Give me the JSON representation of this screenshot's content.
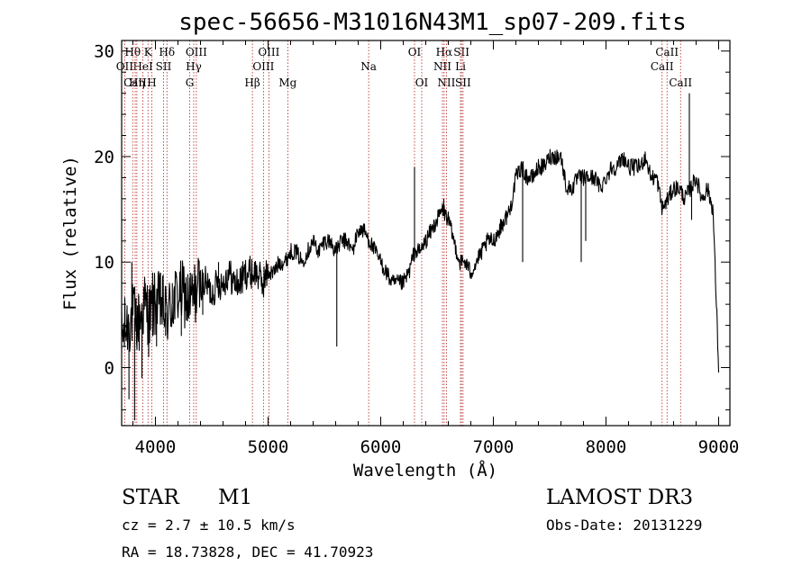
{
  "chart_data": {
    "type": "line",
    "title": "spec-56656-M31016N43M1_sp07-209.fits",
    "xlabel": "Wavelength (Å)",
    "ylabel": "Flux (relative)",
    "xlim": [
      3700,
      9100
    ],
    "ylim": [
      -5.5,
      31
    ],
    "x_ticks": [
      4000,
      5000,
      6000,
      7000,
      8000,
      9000
    ],
    "y_ticks": [
      0,
      10,
      20,
      30
    ],
    "x_tick_labels": [
      "4000",
      "5000",
      "6000",
      "7000",
      "8000",
      "9000"
    ],
    "y_tick_labels": [
      "0",
      "10",
      "20",
      "30"
    ],
    "series": [
      {
        "name": "flux",
        "x": [
          3700,
          3750,
          3800,
          3850,
          3900,
          3950,
          4000,
          4050,
          4100,
          4150,
          4200,
          4250,
          4300,
          4350,
          4400,
          4450,
          4500,
          4550,
          4600,
          4650,
          4700,
          4750,
          4800,
          4850,
          4900,
          4950,
          5000,
          5050,
          5100,
          5150,
          5200,
          5250,
          5300,
          5350,
          5400,
          5450,
          5500,
          5550,
          5600,
          5650,
          5700,
          5750,
          5800,
          5850,
          5900,
          5950,
          6000,
          6050,
          6100,
          6150,
          6200,
          6250,
          6300,
          6350,
          6400,
          6450,
          6500,
          6550,
          6600,
          6650,
          6700,
          6750,
          6800,
          6850,
          6900,
          6950,
          7000,
          7050,
          7100,
          7150,
          7200,
          7250,
          7300,
          7350,
          7400,
          7450,
          7500,
          7550,
          7600,
          7650,
          7700,
          7750,
          7800,
          7850,
          7900,
          7950,
          8000,
          8050,
          8100,
          8150,
          8200,
          8250,
          8300,
          8350,
          8400,
          8450,
          8500,
          8550,
          8600,
          8650,
          8700,
          8750,
          8800,
          8850,
          8900,
          8950,
          9000
        ],
        "y": [
          3,
          4,
          5,
          4,
          6,
          5,
          6,
          6,
          5,
          6,
          7,
          7,
          6,
          7,
          8,
          8,
          7,
          8,
          8,
          9,
          8,
          8,
          9,
          9,
          9,
          8,
          9,
          9,
          10,
          10,
          11,
          11,
          10,
          11,
          12,
          11,
          12,
          12,
          11,
          12,
          12,
          11,
          13,
          13,
          12,
          11,
          10,
          9,
          8,
          8,
          8,
          9,
          11,
          11,
          12,
          13,
          14,
          15,
          14,
          12,
          10,
          10,
          9,
          10,
          11,
          12,
          12,
          13,
          14,
          15,
          18,
          19,
          18,
          18,
          19,
          19,
          20,
          20,
          20,
          17,
          17,
          18,
          18,
          18,
          18,
          17,
          18,
          19,
          19,
          20,
          19,
          19,
          19,
          20,
          18,
          18,
          15,
          16,
          17,
          17,
          16,
          17,
          18,
          16,
          17,
          15,
          0
        ],
        "spikes": [
          {
            "x": 3740,
            "y": 4
          },
          {
            "x": 3765,
            "y": -3
          },
          {
            "x": 3790,
            "y": 10
          },
          {
            "x": 3815,
            "y": -5
          },
          {
            "x": 3850,
            "y": 7
          },
          {
            "x": 3880,
            "y": -1
          },
          {
            "x": 3910,
            "y": 8
          },
          {
            "x": 3940,
            "y": 1
          },
          {
            "x": 3975,
            "y": 9
          },
          {
            "x": 4010,
            "y": 2
          },
          {
            "x": 4045,
            "y": 9
          },
          {
            "x": 4090,
            "y": 3
          },
          {
            "x": 4150,
            "y": 8
          },
          {
            "x": 4230,
            "y": 3
          },
          {
            "x": 4310,
            "y": 9
          },
          {
            "x": 4420,
            "y": 5
          },
          {
            "x": 4560,
            "y": 10
          },
          {
            "x": 5610,
            "y": 2
          },
          {
            "x": 6300,
            "y": 19
          },
          {
            "x": 6560,
            "y": 16
          },
          {
            "x": 7260,
            "y": 10
          },
          {
            "x": 7780,
            "y": 10
          },
          {
            "x": 7820,
            "y": 12
          },
          {
            "x": 8740,
            "y": 26
          },
          {
            "x": 8760,
            "y": 14
          },
          {
            "x": 8980,
            "y": 6
          }
        ]
      }
    ],
    "emission_lines": [
      {
        "label": "Hθ",
        "wavelength": 3798,
        "row": 1
      },
      {
        "label": "K",
        "wavelength": 3934,
        "row": 1
      },
      {
        "label": "Hδ",
        "wavelength": 4102,
        "row": 1
      },
      {
        "label": "OIII",
        "wavelength": 4363,
        "row": 1
      },
      {
        "label": "OIII",
        "wavelength": 5007,
        "row": 1
      },
      {
        "label": "OI",
        "wavelength": 6300,
        "row": 1
      },
      {
        "label": "Hα",
        "wavelength": 6563,
        "row": 1
      },
      {
        "label": "SII",
        "wavelength": 6717,
        "row": 1
      },
      {
        "label": "CaII",
        "wavelength": 8542,
        "row": 1
      },
      {
        "label": "OII",
        "wavelength": 3727,
        "row": 2
      },
      {
        "label": "HeI",
        "wavelength": 3889,
        "row": 2
      },
      {
        "label": "SII",
        "wavelength": 4072,
        "row": 2
      },
      {
        "label": "Hγ",
        "wavelength": 4340,
        "row": 2
      },
      {
        "label": "OIII",
        "wavelength": 4959,
        "row": 2
      },
      {
        "label": "Na",
        "wavelength": 5893,
        "row": 2
      },
      {
        "label": "NII",
        "wavelength": 6548,
        "row": 2
      },
      {
        "label": "Li",
        "wavelength": 6708,
        "row": 2
      },
      {
        "label": "CaII",
        "wavelength": 8498,
        "row": 2
      },
      {
        "label": "CaII",
        "wavelength": 3820,
        "row": 3
      },
      {
        "label": "Hη",
        "wavelength": 3835,
        "row": 3
      },
      {
        "label": "H",
        "wavelength": 3968,
        "row": 3
      },
      {
        "label": "G",
        "wavelength": 4304,
        "row": 3
      },
      {
        "label": "Hβ",
        "wavelength": 4861,
        "row": 3
      },
      {
        "label": "Mg",
        "wavelength": 5175,
        "row": 3
      },
      {
        "label": "OI",
        "wavelength": 6364,
        "row": 3
      },
      {
        "label": "NII",
        "wavelength": 6583,
        "row": 3
      },
      {
        "label": "SII",
        "wavelength": 6731,
        "row": 3
      },
      {
        "label": "CaII",
        "wavelength": 8662,
        "row": 3
      }
    ]
  },
  "info": {
    "object_class": "STAR",
    "subclass": "M1",
    "survey": "LAMOST DR3",
    "redshift": "cz = 2.7 ± 10.5 km/s",
    "obs_date": "Obs-Date: 20131229",
    "coords": "RA =  18.73828, DEC =  41.70923"
  },
  "colors": {
    "spectrum": "#000000",
    "line_marker": "#b22222",
    "axes": "#000000"
  }
}
